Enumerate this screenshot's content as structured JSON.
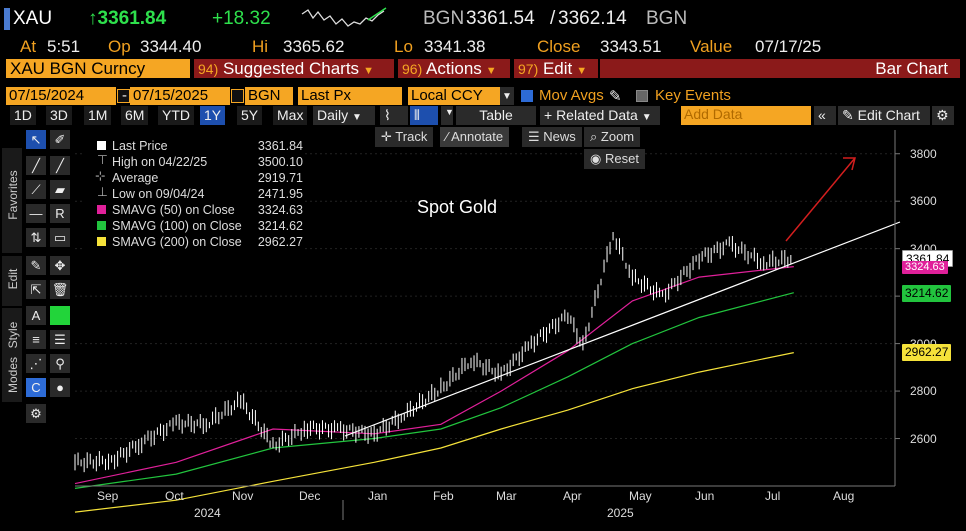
{
  "header": {
    "ticker": "XAU",
    "last_price": "↑3361.84",
    "change": "+18.32",
    "bid_code": "BGN",
    "bid": "3361.54",
    "slash": "/",
    "ask": "3362.14",
    "ask_code": "BGN"
  },
  "quote_line": {
    "at_label": "At",
    "at_value": "5:51",
    "op_label": "Op",
    "op_value": "3344.40",
    "hi_label": "Hi",
    "hi_value": "3365.62",
    "lo_label": "Lo",
    "lo_value": "3341.38",
    "close_label": "Close",
    "close_value": "3343.51",
    "value_label": "Value",
    "value_value": "07/17/25"
  },
  "command_bar": {
    "security": "XAU BGN Curncy",
    "suggested_num": "94)",
    "suggested_label": "Suggested Charts",
    "actions_num": "96)",
    "actions_label": "Actions",
    "edit_num": "97)",
    "edit_label": "Edit",
    "title": "Bar Chart"
  },
  "settings_bar": {
    "start_date": "07/15/2024",
    "dash": "-",
    "end_date": "07/15/2025",
    "source": "BGN",
    "field": "Last Px",
    "currency": "Local CCY",
    "mov_avgs": "Mov Avgs",
    "key_events": "Key Events"
  },
  "range_bar": {
    "ranges": [
      "1D",
      "3D",
      "1M",
      "6M",
      "YTD",
      "1Y",
      "5Y",
      "Max"
    ],
    "selected": "1Y",
    "period": "Daily",
    "table": "Table",
    "related": "+ Related Data",
    "add_data_placeholder": "Add Data",
    "edit_chart": "Edit Chart"
  },
  "side_tabs": [
    "Favorites",
    "Edit",
    "Style",
    "Modes"
  ],
  "chart_tools": {
    "track": "Track",
    "annotate": "Annotate",
    "news": "News",
    "zoom": "Zoom",
    "reset": "Reset"
  },
  "legend": [
    {
      "label": "Last Price",
      "value": "3361.84",
      "color": "#ffffff"
    },
    {
      "label": "High on 04/22/25",
      "value": "3500.10",
      "color": ""
    },
    {
      "label": "Average",
      "value": "2919.71",
      "color": ""
    },
    {
      "label": "Low on 09/04/24",
      "value": "2471.95",
      "color": ""
    },
    {
      "label": "SMAVG (50)  on Close",
      "value": "3324.63",
      "color": "#e0209a"
    },
    {
      "label": "SMAVG (100)  on Close",
      "value": "3214.62",
      "color": "#22c43e"
    },
    {
      "label": "SMAVG (200)  on Close",
      "value": "2962.27",
      "color": "#f5e23a"
    }
  ],
  "chart_text": {
    "annotation": "Spot Gold"
  },
  "chart_data": {
    "type": "line",
    "y_ticks": [
      2600,
      2800,
      3000,
      3200,
      3400,
      3600,
      3800
    ],
    "ylim": [
      2400,
      3900
    ],
    "x_month_labels": [
      "Sep",
      "Oct",
      "Nov",
      "Dec",
      "Jan",
      "Feb",
      "Mar",
      "Apr",
      "May",
      "Jun",
      "Jul",
      "Aug"
    ],
    "x_year_labels": [
      "2024",
      "2025"
    ],
    "price_flags": [
      {
        "value": "3361.84",
        "color": "#ffffff",
        "text_color": "#000000"
      },
      {
        "value": "3324.63",
        "color": "#e0209a",
        "text_color": "#ffffff"
      },
      {
        "value": "3214.62",
        "color": "#22c43e",
        "text_color": "#000000"
      },
      {
        "value": "2962.27",
        "color": "#f5e23a",
        "text_color": "#000000"
      }
    ],
    "series": [
      {
        "name": "Last Price",
        "color": "#ffffff",
        "dates": [
          "2024-08-15",
          "2024-09-01",
          "2024-09-15",
          "2024-10-01",
          "2024-10-15",
          "2024-10-31",
          "2024-11-15",
          "2024-12-01",
          "2024-12-15",
          "2025-01-01",
          "2025-01-15",
          "2025-02-01",
          "2025-02-15",
          "2025-03-01",
          "2025-03-15",
          "2025-04-01",
          "2025-04-08",
          "2025-04-22",
          "2025-05-01",
          "2025-05-15",
          "2025-06-01",
          "2025-06-15",
          "2025-07-01",
          "2025-07-15"
        ],
        "values": [
          2500,
          2505,
          2585,
          2665,
          2660,
          2760,
          2570,
          2645,
          2640,
          2620,
          2700,
          2810,
          2930,
          2870,
          3000,
          3120,
          2990,
          3460,
          3280,
          3200,
          3360,
          3420,
          3340,
          3360
        ]
      },
      {
        "name": "SMAVG (50)",
        "color": "#e0209a",
        "dates": [
          "2024-08-15",
          "2024-10-01",
          "2024-11-15",
          "2025-01-01",
          "2025-02-01",
          "2025-03-01",
          "2025-04-01",
          "2025-05-01",
          "2025-06-01",
          "2025-07-15"
        ],
        "values": [
          2410,
          2500,
          2640,
          2620,
          2660,
          2800,
          2970,
          3180,
          3280,
          3324.63
        ]
      },
      {
        "name": "SMAVG (100)",
        "color": "#22c43e",
        "dates": [
          "2024-08-15",
          "2024-10-01",
          "2024-11-15",
          "2025-01-01",
          "2025-02-01",
          "2025-03-01",
          "2025-04-01",
          "2025-05-01",
          "2025-06-01",
          "2025-07-15"
        ],
        "values": [
          2390,
          2450,
          2560,
          2600,
          2640,
          2730,
          2860,
          3000,
          3110,
          3214.62
        ]
      },
      {
        "name": "SMAVG (200)",
        "color": "#f5e23a",
        "dates": [
          "2024-08-15",
          "2024-10-01",
          "2024-11-15",
          "2025-01-01",
          "2025-02-01",
          "2025-03-01",
          "2025-04-01",
          "2025-05-01",
          "2025-06-01",
          "2025-07-15"
        ],
        "values": [
          2290,
          2340,
          2420,
          2500,
          2560,
          2640,
          2720,
          2810,
          2880,
          2962.27
        ]
      }
    ]
  }
}
